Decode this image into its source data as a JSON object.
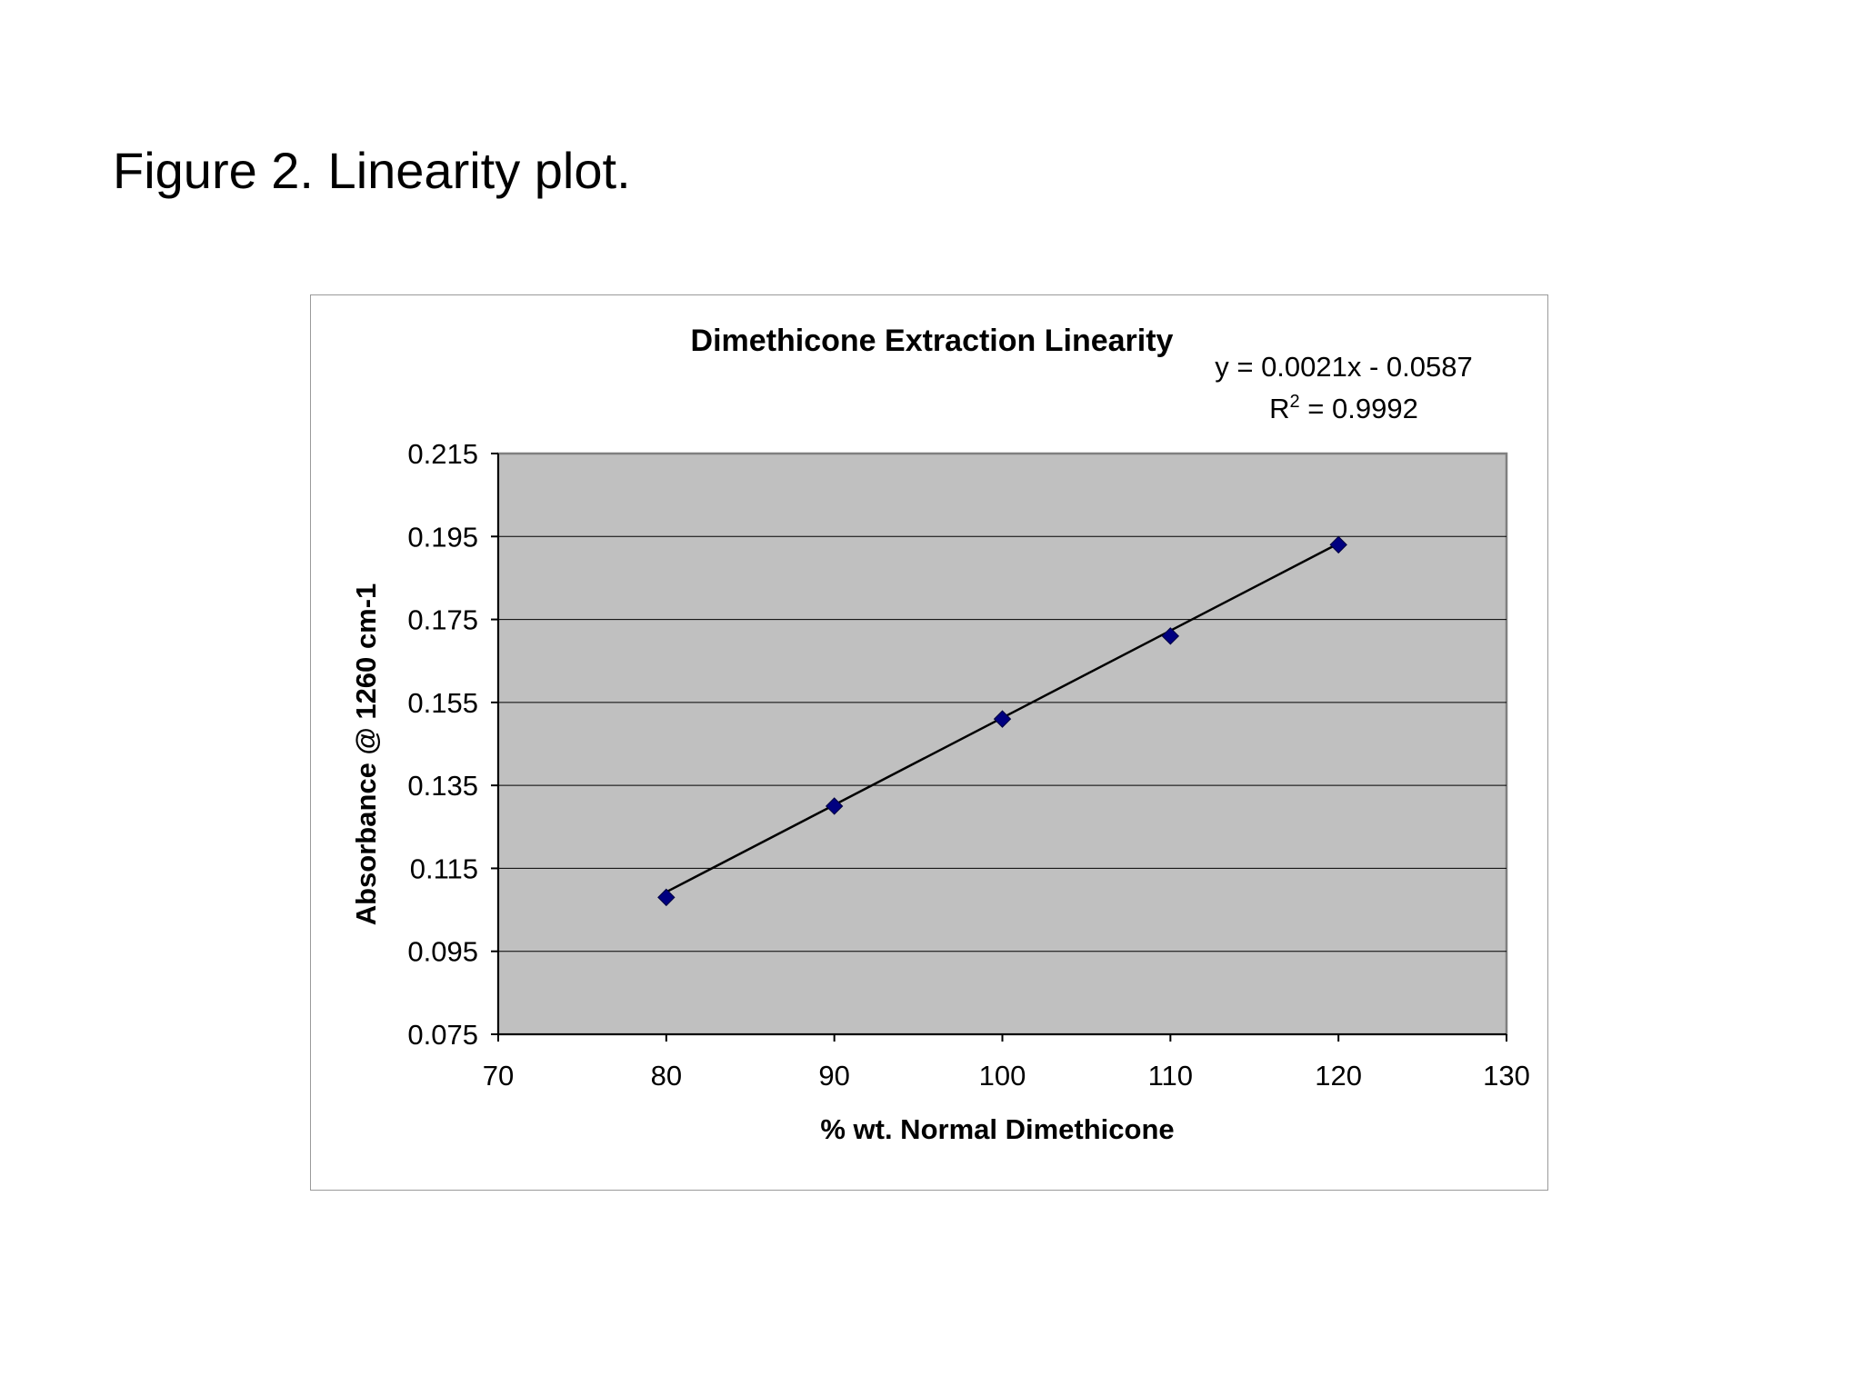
{
  "figure": {
    "caption": "Figure 2. Linearity plot."
  },
  "chart_data": {
    "type": "scatter",
    "title": "Dimethicone Extraction Linearity",
    "xlabel": "% wt. Normal Dimethicone",
    "ylabel": "Absorbance @ 1260 cm-1",
    "xlim": [
      70,
      130
    ],
    "ylim": [
      0.075,
      0.215
    ],
    "xticks": [
      "70",
      "80",
      "90",
      "100",
      "110",
      "120",
      "130"
    ],
    "yticks": [
      "0.075",
      "0.095",
      "0.115",
      "0.135",
      "0.155",
      "0.175",
      "0.195",
      "0.215"
    ],
    "grid": "horizontal",
    "plot_background": "#c0c0c0",
    "series": [
      {
        "x": [
          80,
          90,
          100,
          110,
          120
        ],
        "y": [
          0.108,
          0.13,
          0.151,
          0.171,
          0.193
        ],
        "marker": "diamond",
        "color": "#000080"
      }
    ],
    "trendline": {
      "slope": 0.0021,
      "intercept": -0.0587,
      "color": "#000000"
    },
    "annotations": {
      "equation": "y = 0.0021x - 0.0587",
      "r_squared_prefix": "R",
      "r_squared_exponent": "2",
      "r_squared_value": " = 0.9992"
    }
  }
}
